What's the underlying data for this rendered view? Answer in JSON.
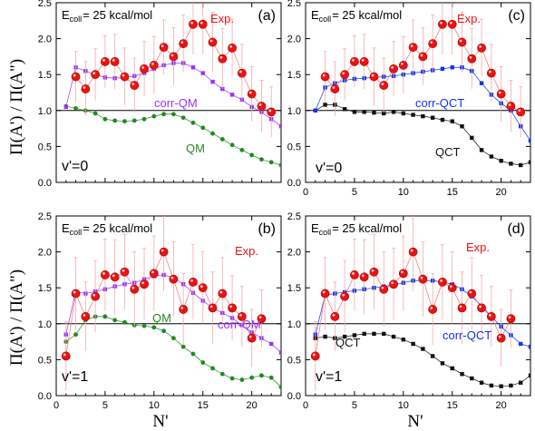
{
  "figure": {
    "ylabel": "Π(A') / Π(A\")",
    "xlabel": "N'"
  },
  "colors": {
    "exp": "#ee1111",
    "corr_qm": "#9933ff",
    "qm": "#228822",
    "corr_qct": "#1133ee",
    "qct": "#111111"
  },
  "chart_data": [
    {
      "type": "scatter",
      "panel": "(a)",
      "energy": "E",
      "energy_sub": "coll",
      "energy_rest": "= 25 kcal/mol",
      "v_label": "v'=0",
      "xlim": [
        0,
        23
      ],
      "ylim": [
        0,
        2.5
      ],
      "xticks": [
        0,
        5,
        10,
        15,
        20
      ],
      "yticks": [
        0.0,
        0.5,
        1.0,
        1.5,
        2.0,
        2.5
      ],
      "ref_line": 1.0,
      "labels": {
        "exp": "Exp.",
        "corr": "corr-QM",
        "theory": "QM"
      },
      "series": [
        {
          "name": "Exp.",
          "key": "exp",
          "x": [
            2,
            3,
            4,
            5,
            6,
            7,
            8,
            9,
            10,
            11,
            12,
            13,
            14,
            15,
            16,
            17,
            18,
            19,
            20,
            21,
            22
          ],
          "y": [
            1.47,
            1.3,
            1.5,
            1.68,
            1.68,
            1.47,
            1.35,
            1.58,
            1.63,
            1.88,
            1.75,
            1.93,
            2.2,
            2.2,
            1.95,
            1.72,
            1.87,
            1.52,
            1.23,
            1.06,
            0.98
          ],
          "err": [
            0.35,
            0.38,
            0.36,
            0.36,
            0.38,
            0.4,
            0.38,
            0.38,
            0.4,
            0.38,
            0.4,
            0.4,
            0.42,
            0.42,
            0.42,
            0.42,
            0.4,
            0.4,
            0.38,
            0.36,
            0.35
          ]
        },
        {
          "name": "corr-QM",
          "key": "corr",
          "x": [
            1,
            2,
            3,
            4,
            5,
            6,
            7,
            8,
            9,
            10,
            11,
            12,
            13,
            14,
            15,
            16,
            17,
            18,
            19,
            20,
            21,
            22,
            23
          ],
          "y": [
            1.05,
            1.6,
            1.55,
            1.5,
            1.46,
            1.45,
            1.46,
            1.48,
            1.52,
            1.58,
            1.63,
            1.66,
            1.66,
            1.6,
            1.52,
            1.4,
            1.3,
            1.22,
            1.15,
            1.05,
            0.98,
            0.88,
            0.78
          ]
        },
        {
          "name": "QM",
          "key": "theory",
          "x": [
            1,
            2,
            3,
            4,
            5,
            6,
            7,
            8,
            9,
            10,
            11,
            12,
            13,
            14,
            15,
            16,
            17,
            18,
            19,
            20,
            21,
            22,
            23
          ],
          "y": [
            1.06,
            1.03,
            1.0,
            0.96,
            0.88,
            0.86,
            0.85,
            0.86,
            0.88,
            0.92,
            0.95,
            0.95,
            0.9,
            0.83,
            0.76,
            0.68,
            0.6,
            0.52,
            0.45,
            0.38,
            0.32,
            0.28,
            0.24
          ]
        }
      ]
    },
    {
      "type": "scatter",
      "panel": "(c)",
      "energy": "E",
      "energy_sub": "coll",
      "energy_rest": "= 25 kcal/mol",
      "v_label": "v'=0",
      "xlim": [
        0,
        23
      ],
      "ylim": [
        0,
        2.5
      ],
      "xticks": [
        0,
        5,
        10,
        15,
        20
      ],
      "yticks": [
        0.0,
        0.5,
        1.0,
        1.5,
        2.0,
        2.5
      ],
      "ref_line": 1.0,
      "labels": {
        "exp": "Exp.",
        "corr": "corr-QCT",
        "theory": "QCT"
      },
      "series": [
        {
          "name": "Exp.",
          "key": "exp",
          "x": [
            2,
            3,
            4,
            5,
            6,
            7,
            8,
            9,
            10,
            11,
            12,
            13,
            14,
            15,
            16,
            17,
            18,
            19,
            20,
            21,
            22
          ],
          "y": [
            1.47,
            1.3,
            1.5,
            1.68,
            1.68,
            1.47,
            1.35,
            1.58,
            1.63,
            1.88,
            1.75,
            1.93,
            2.2,
            2.2,
            1.95,
            1.72,
            1.87,
            1.52,
            1.23,
            1.06,
            0.98
          ],
          "err": [
            0.35,
            0.38,
            0.36,
            0.36,
            0.38,
            0.4,
            0.38,
            0.38,
            0.4,
            0.38,
            0.4,
            0.4,
            0.42,
            0.42,
            0.42,
            0.42,
            0.4,
            0.4,
            0.38,
            0.36,
            0.35
          ]
        },
        {
          "name": "corr-QCT",
          "key": "corr",
          "x": [
            1,
            2,
            3,
            4,
            5,
            6,
            7,
            8,
            9,
            10,
            11,
            12,
            13,
            14,
            15,
            16,
            17,
            18,
            19,
            20,
            21,
            22,
            23
          ],
          "y": [
            1.0,
            1.32,
            1.38,
            1.42,
            1.44,
            1.45,
            1.46,
            1.47,
            1.48,
            1.5,
            1.52,
            1.54,
            1.56,
            1.58,
            1.6,
            1.6,
            1.55,
            1.38,
            1.22,
            1.1,
            1.0,
            0.78,
            0.58
          ]
        },
        {
          "name": "QCT",
          "key": "theory",
          "x": [
            1,
            2,
            3,
            4,
            5,
            6,
            7,
            8,
            9,
            10,
            11,
            12,
            13,
            14,
            15,
            16,
            17,
            18,
            19,
            20,
            21,
            22,
            23
          ],
          "y": [
            1.0,
            1.08,
            1.08,
            1.02,
            0.98,
            0.98,
            0.97,
            0.96,
            0.98,
            0.96,
            0.94,
            0.92,
            0.9,
            0.87,
            0.85,
            0.78,
            0.62,
            0.45,
            0.36,
            0.3,
            0.26,
            0.24,
            0.28
          ]
        }
      ]
    },
    {
      "type": "scatter",
      "panel": "(b)",
      "energy": "E",
      "energy_sub": "coll",
      "energy_rest": "= 25 kcal/mol",
      "v_label": "v'=1",
      "xlim": [
        0,
        23
      ],
      "ylim": [
        0,
        2.5
      ],
      "xticks": [
        0,
        5,
        10,
        15,
        20
      ],
      "yticks": [
        0.0,
        0.5,
        1.0,
        1.5,
        2.0,
        2.5
      ],
      "ref_line": 1.0,
      "labels": {
        "exp": "Exp.",
        "corr": "corr-QM",
        "theory": "QM"
      },
      "series": [
        {
          "name": "Exp.",
          "key": "exp",
          "x": [
            1,
            2,
            3,
            4,
            5,
            6,
            7,
            8,
            9,
            10,
            11,
            12,
            13,
            14,
            15,
            16,
            17,
            18,
            19,
            20,
            21
          ],
          "y": [
            0.55,
            1.42,
            1.1,
            1.38,
            1.68,
            1.65,
            1.72,
            1.48,
            1.55,
            1.7,
            2.0,
            1.62,
            1.2,
            1.58,
            1.5,
            1.22,
            1.42,
            1.22,
            1.1,
            0.8,
            1.07
          ],
          "err": [
            0.48,
            0.5,
            0.48,
            0.5,
            0.5,
            0.52,
            0.52,
            0.52,
            0.5,
            0.52,
            0.55,
            0.52,
            0.5,
            0.52,
            0.5,
            0.5,
            0.5,
            0.45,
            0.42,
            0.4,
            0.4
          ]
        },
        {
          "name": "corr-QM",
          "key": "corr",
          "x": [
            1,
            2,
            3,
            4,
            5,
            6,
            7,
            8,
            9,
            10,
            11,
            12,
            13,
            14,
            15,
            16,
            17,
            18,
            19,
            20,
            21,
            22,
            23
          ],
          "y": [
            0.85,
            1.45,
            1.42,
            1.45,
            1.48,
            1.52,
            1.55,
            1.57,
            1.62,
            1.66,
            1.68,
            1.64,
            1.55,
            1.43,
            1.32,
            1.22,
            1.15,
            1.08,
            0.98,
            0.88,
            0.8,
            0.72,
            0.6
          ]
        },
        {
          "name": "QM",
          "key": "theory",
          "x": [
            1,
            2,
            3,
            4,
            5,
            6,
            7,
            8,
            9,
            10,
            11,
            12,
            13,
            14,
            15,
            16,
            17,
            18,
            19,
            20,
            21,
            22,
            23
          ],
          "y": [
            0.75,
            0.85,
            1.05,
            1.1,
            1.1,
            1.05,
            1.02,
            0.98,
            0.97,
            0.95,
            0.9,
            0.8,
            0.68,
            0.58,
            0.46,
            0.38,
            0.3,
            0.24,
            0.22,
            0.25,
            0.28,
            0.25,
            0.12
          ]
        }
      ]
    },
    {
      "type": "scatter",
      "panel": "(d)",
      "energy": "E",
      "energy_sub": "coll",
      "energy_rest": "= 25 kcal/mol",
      "v_label": "v'=1",
      "xlim": [
        0,
        23
      ],
      "ylim": [
        0,
        2.5
      ],
      "xticks": [
        0,
        5,
        10,
        15,
        20
      ],
      "yticks": [
        0.0,
        0.5,
        1.0,
        1.5,
        2.0,
        2.5
      ],
      "ref_line": 1.0,
      "labels": {
        "exp": "Exp.",
        "corr": "corr-QCT",
        "theory": "QCT"
      },
      "series": [
        {
          "name": "Exp.",
          "key": "exp",
          "x": [
            1,
            2,
            3,
            4,
            5,
            6,
            7,
            8,
            9,
            10,
            11,
            12,
            13,
            14,
            15,
            16,
            17,
            18,
            19,
            20,
            21
          ],
          "y": [
            0.55,
            1.42,
            1.1,
            1.38,
            1.68,
            1.65,
            1.72,
            1.48,
            1.55,
            1.7,
            2.0,
            1.62,
            1.2,
            1.58,
            1.5,
            1.22,
            1.42,
            1.22,
            1.1,
            0.8,
            1.07
          ],
          "err": [
            0.48,
            0.5,
            0.48,
            0.5,
            0.5,
            0.52,
            0.52,
            0.52,
            0.5,
            0.52,
            0.55,
            0.52,
            0.5,
            0.52,
            0.5,
            0.5,
            0.5,
            0.45,
            0.42,
            0.4,
            0.4
          ]
        },
        {
          "name": "corr-QCT",
          "key": "corr",
          "x": [
            1,
            2,
            3,
            4,
            5,
            6,
            7,
            8,
            9,
            10,
            11,
            12,
            13,
            14,
            15,
            16,
            17,
            18,
            19,
            20,
            21,
            22,
            23
          ],
          "y": [
            0.85,
            1.4,
            1.42,
            1.44,
            1.46,
            1.48,
            1.5,
            1.52,
            1.54,
            1.57,
            1.6,
            1.6,
            1.6,
            1.58,
            1.55,
            1.48,
            1.38,
            1.25,
            1.1,
            0.96,
            0.84,
            0.72,
            0.68
          ]
        },
        {
          "name": "QCT",
          "key": "theory",
          "x": [
            1,
            2,
            3,
            4,
            5,
            6,
            7,
            8,
            9,
            10,
            11,
            12,
            13,
            14,
            15,
            16,
            17,
            18,
            19,
            20,
            21,
            22,
            23
          ],
          "y": [
            0.8,
            0.82,
            0.8,
            0.82,
            0.84,
            0.86,
            0.86,
            0.86,
            0.82,
            0.78,
            0.72,
            0.65,
            0.55,
            0.45,
            0.38,
            0.3,
            0.24,
            0.18,
            0.14,
            0.13,
            0.14,
            0.18,
            0.28
          ]
        }
      ]
    }
  ]
}
